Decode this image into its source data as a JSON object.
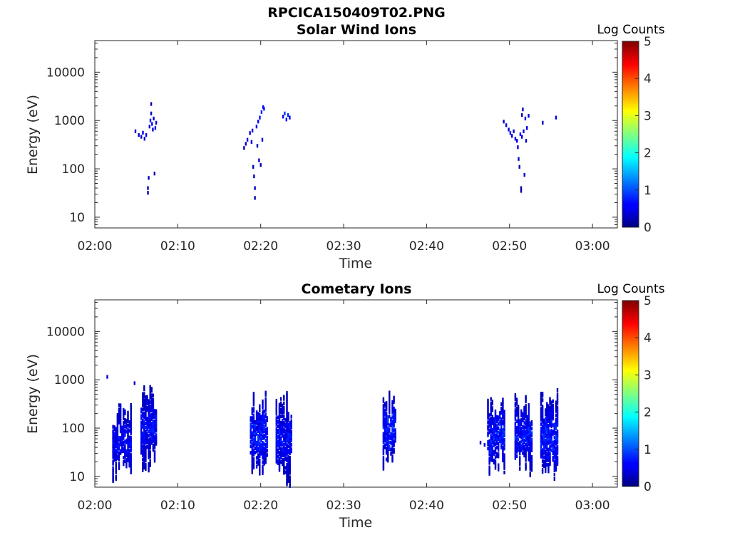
{
  "figure_title": "RPCICA150409T02.PNG",
  "chart_data": [
    {
      "type": "heatmap",
      "title": "Solar Wind Ions",
      "xlabel": "Time",
      "ylabel": "Energy (eV)",
      "xticks": [
        "02:00",
        "02:10",
        "02:20",
        "02:30",
        "02:40",
        "02:50",
        "03:00"
      ],
      "xlim_minutes": [
        0,
        63
      ],
      "yscale": "log",
      "yticks": [
        "10",
        "100",
        "1000",
        "10000"
      ],
      "ylim": [
        6,
        45000
      ],
      "colorbar": {
        "label": "Log Counts",
        "range": [
          0,
          5
        ],
        "ticks": [
          "0",
          "1",
          "2",
          "3",
          "4",
          "5"
        ],
        "colormap": "jet"
      },
      "cells": [
        [
          4.9,
          600,
          0.2
        ],
        [
          5.3,
          500,
          0.3
        ],
        [
          5.6,
          460,
          0.2
        ],
        [
          5.8,
          560,
          0.4
        ],
        [
          6.0,
          420,
          0.3
        ],
        [
          6.2,
          500,
          0.5
        ],
        [
          6.4,
          40,
          0.2
        ],
        [
          6.4,
          32,
          0.1
        ],
        [
          6.5,
          65,
          0.2
        ],
        [
          6.6,
          750,
          0.4
        ],
        [
          6.7,
          1000,
          0.6
        ],
        [
          6.8,
          1400,
          0.3
        ],
        [
          6.8,
          2200,
          0.2
        ],
        [
          6.9,
          850,
          0.5
        ],
        [
          7.0,
          650,
          0.4
        ],
        [
          7.1,
          1100,
          0.3
        ],
        [
          7.2,
          80,
          0.2
        ],
        [
          7.3,
          700,
          0.6
        ],
        [
          7.4,
          900,
          0.4
        ],
        [
          18.0,
          270,
          0.2
        ],
        [
          18.2,
          330,
          0.3
        ],
        [
          18.4,
          400,
          0.4
        ],
        [
          18.7,
          550,
          0.3
        ],
        [
          18.9,
          360,
          0.5
        ],
        [
          19.0,
          620,
          0.3
        ],
        [
          19.1,
          110,
          0.2
        ],
        [
          19.2,
          70,
          0.2
        ],
        [
          19.3,
          40,
          0.2
        ],
        [
          19.3,
          25,
          0.1
        ],
        [
          19.5,
          750,
          0.4
        ],
        [
          19.6,
          300,
          0.2
        ],
        [
          19.7,
          950,
          0.5
        ],
        [
          19.8,
          150,
          0.3
        ],
        [
          19.9,
          1150,
          0.6
        ],
        [
          20.0,
          120,
          0.2
        ],
        [
          20.1,
          1500,
          0.7
        ],
        [
          20.2,
          400,
          0.3
        ],
        [
          20.3,
          1900,
          0.5
        ],
        [
          20.4,
          1750,
          0.6
        ],
        [
          22.7,
          1200,
          0.5
        ],
        [
          22.9,
          1400,
          0.8
        ],
        [
          23.1,
          1050,
          0.6
        ],
        [
          23.3,
          1300,
          0.7
        ],
        [
          23.5,
          1150,
          0.5
        ],
        [
          49.3,
          950,
          0.3
        ],
        [
          49.6,
          800,
          0.4
        ],
        [
          49.9,
          650,
          0.3
        ],
        [
          50.1,
          550,
          0.5
        ],
        [
          50.3,
          480,
          0.4
        ],
        [
          50.5,
          600,
          0.3
        ],
        [
          50.7,
          420,
          0.5
        ],
        [
          50.9,
          380,
          0.4
        ],
        [
          51.0,
          280,
          0.3
        ],
        [
          51.1,
          160,
          0.2
        ],
        [
          51.2,
          110,
          0.2
        ],
        [
          51.3,
          520,
          0.6
        ],
        [
          51.4,
          40,
          0.2
        ],
        [
          51.4,
          35,
          0.1
        ],
        [
          51.5,
          1300,
          0.3
        ],
        [
          51.5,
          460,
          0.4
        ],
        [
          51.6,
          1700,
          0.2
        ],
        [
          51.7,
          600,
          0.5
        ],
        [
          51.8,
          75,
          0.3
        ],
        [
          51.9,
          1100,
          0.4
        ],
        [
          52.0,
          380,
          0.3
        ],
        [
          52.1,
          700,
          0.4
        ],
        [
          52.3,
          1250,
          0.3
        ],
        [
          54.0,
          900,
          0.3
        ],
        [
          55.6,
          1150,
          0.4
        ]
      ]
    },
    {
      "type": "heatmap",
      "title": "Cometary Ions",
      "xlabel": "Time",
      "ylabel": "Energy (eV)",
      "xticks": [
        "02:00",
        "02:10",
        "02:20",
        "02:30",
        "02:40",
        "02:50",
        "03:00"
      ],
      "xlim_minutes": [
        0,
        63
      ],
      "yscale": "log",
      "yticks": [
        "10",
        "100",
        "1000",
        "10000"
      ],
      "ylim": [
        6,
        45000
      ],
      "colorbar": {
        "label": "Log Counts",
        "range": [
          0,
          5
        ],
        "ticks": [
          "0",
          "1",
          "2",
          "3",
          "4",
          "5"
        ],
        "colormap": "jet"
      },
      "bursts": [
        {
          "t": [
            2.2,
            4.4
          ],
          "e": [
            8,
            400
          ],
          "intensity": 0.55
        },
        {
          "t": [
            5.6,
            7.5
          ],
          "e": [
            12,
            800
          ],
          "intensity": 0.6
        },
        {
          "t": [
            18.8,
            20.8
          ],
          "e": [
            9,
            600
          ],
          "intensity": 0.7
        },
        {
          "t": [
            21.9,
            23.8
          ],
          "e": [
            6,
            600
          ],
          "intensity": 0.6
        },
        {
          "t": [
            34.8,
            36.4
          ],
          "e": [
            13,
            600
          ],
          "intensity": 0.75
        },
        {
          "t": [
            47.4,
            49.5
          ],
          "e": [
            10,
            550
          ],
          "intensity": 0.7
        },
        {
          "t": [
            50.7,
            52.8
          ],
          "e": [
            9,
            550
          ],
          "intensity": 0.65
        },
        {
          "t": [
            53.8,
            55.9
          ],
          "e": [
            7,
            700
          ],
          "intensity": 0.7
        }
      ],
      "cells": [
        [
          1.5,
          1150,
          0.3
        ],
        [
          4.8,
          850,
          0.2
        ],
        [
          5.9,
          450,
          0.3
        ],
        [
          46.5,
          50,
          0.2
        ],
        [
          47.0,
          45,
          0.3
        ]
      ]
    }
  ]
}
